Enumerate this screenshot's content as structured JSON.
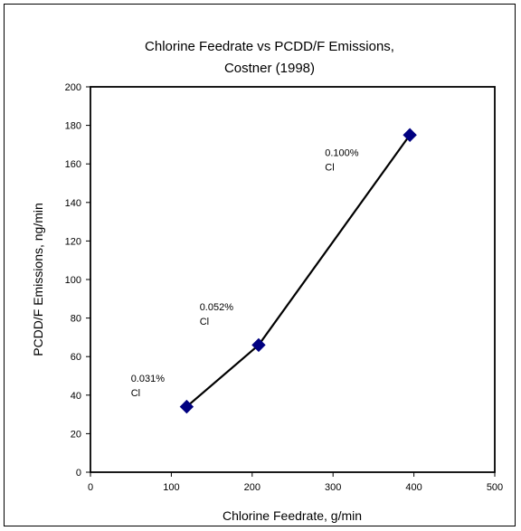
{
  "chart_data": {
    "type": "scatter",
    "title": "Chlorine Feedrate vs PCDD/F Emissions,",
    "subtitle": "Costner (1998)",
    "xlabel": "Chlorine Feedrate, g/min",
    "ylabel": "PCDD/F Emissions, ng/min",
    "xlim": [
      0,
      500
    ],
    "ylim": [
      0,
      200
    ],
    "xticks": [
      "0",
      "100",
      "200",
      "300",
      "400",
      "500"
    ],
    "yticks": [
      "0",
      "20",
      "40",
      "60",
      "80",
      "100",
      "120",
      "140",
      "160",
      "180",
      "200"
    ],
    "grid": false,
    "series": [
      {
        "points": [
          {
            "x": 119,
            "y": 34
          },
          {
            "x": 208,
            "y": 66
          },
          {
            "x": 395,
            "y": 175
          }
        ],
        "marker": "diamond",
        "color": "#000080",
        "line_color": "#000000"
      }
    ],
    "annotations": [
      {
        "line1": "0.031%",
        "line2": "Cl",
        "x": 50,
        "y": 47
      },
      {
        "line1": "0.052%",
        "line2": "Cl",
        "x": 135,
        "y": 84
      },
      {
        "line1": "0.100%",
        "line2": "Cl",
        "x": 290,
        "y": 164
      }
    ]
  }
}
